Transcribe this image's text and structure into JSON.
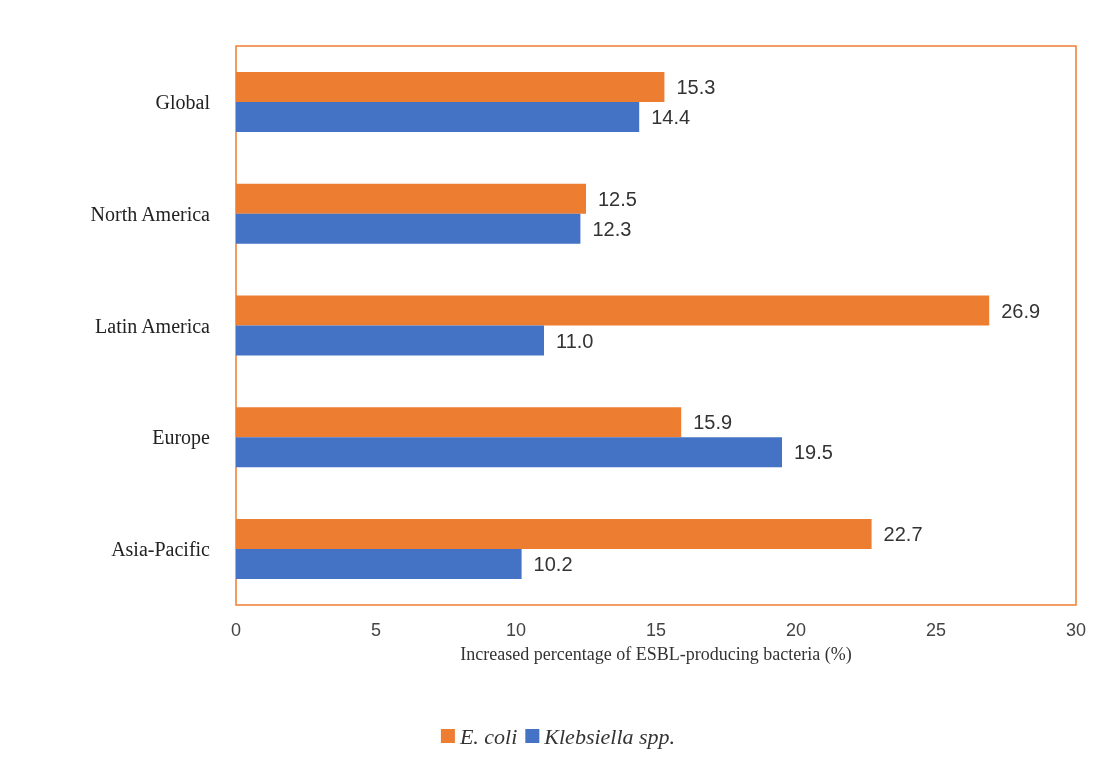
{
  "chart_data": {
    "type": "bar",
    "orientation": "horizontal",
    "xlabel": "Increased percentage of ESBL-producing bacteria (%)",
    "categories": [
      "Global",
      "North America",
      "Latin America",
      "Europe",
      "Asia-Pacific"
    ],
    "series": [
      {
        "name": "E. coli",
        "color": "#ed7d31",
        "values": [
          15.3,
          12.5,
          26.9,
          15.9,
          22.7
        ],
        "value_labels": [
          "15.3",
          "12.5",
          "26.9",
          "15.9",
          "22.7"
        ]
      },
      {
        "name": "Klebsiella spp.",
        "color": "#4472c4",
        "values": [
          14.4,
          12.3,
          11.0,
          19.5,
          10.2
        ],
        "value_labels": [
          "14.4",
          "12.3",
          "11.0",
          "19.5",
          "10.2"
        ]
      }
    ],
    "xlim": [
      0,
      30
    ],
    "xticks": [
      0,
      5,
      10,
      15,
      20,
      25,
      30
    ],
    "grid": false,
    "legend": "bottom"
  }
}
